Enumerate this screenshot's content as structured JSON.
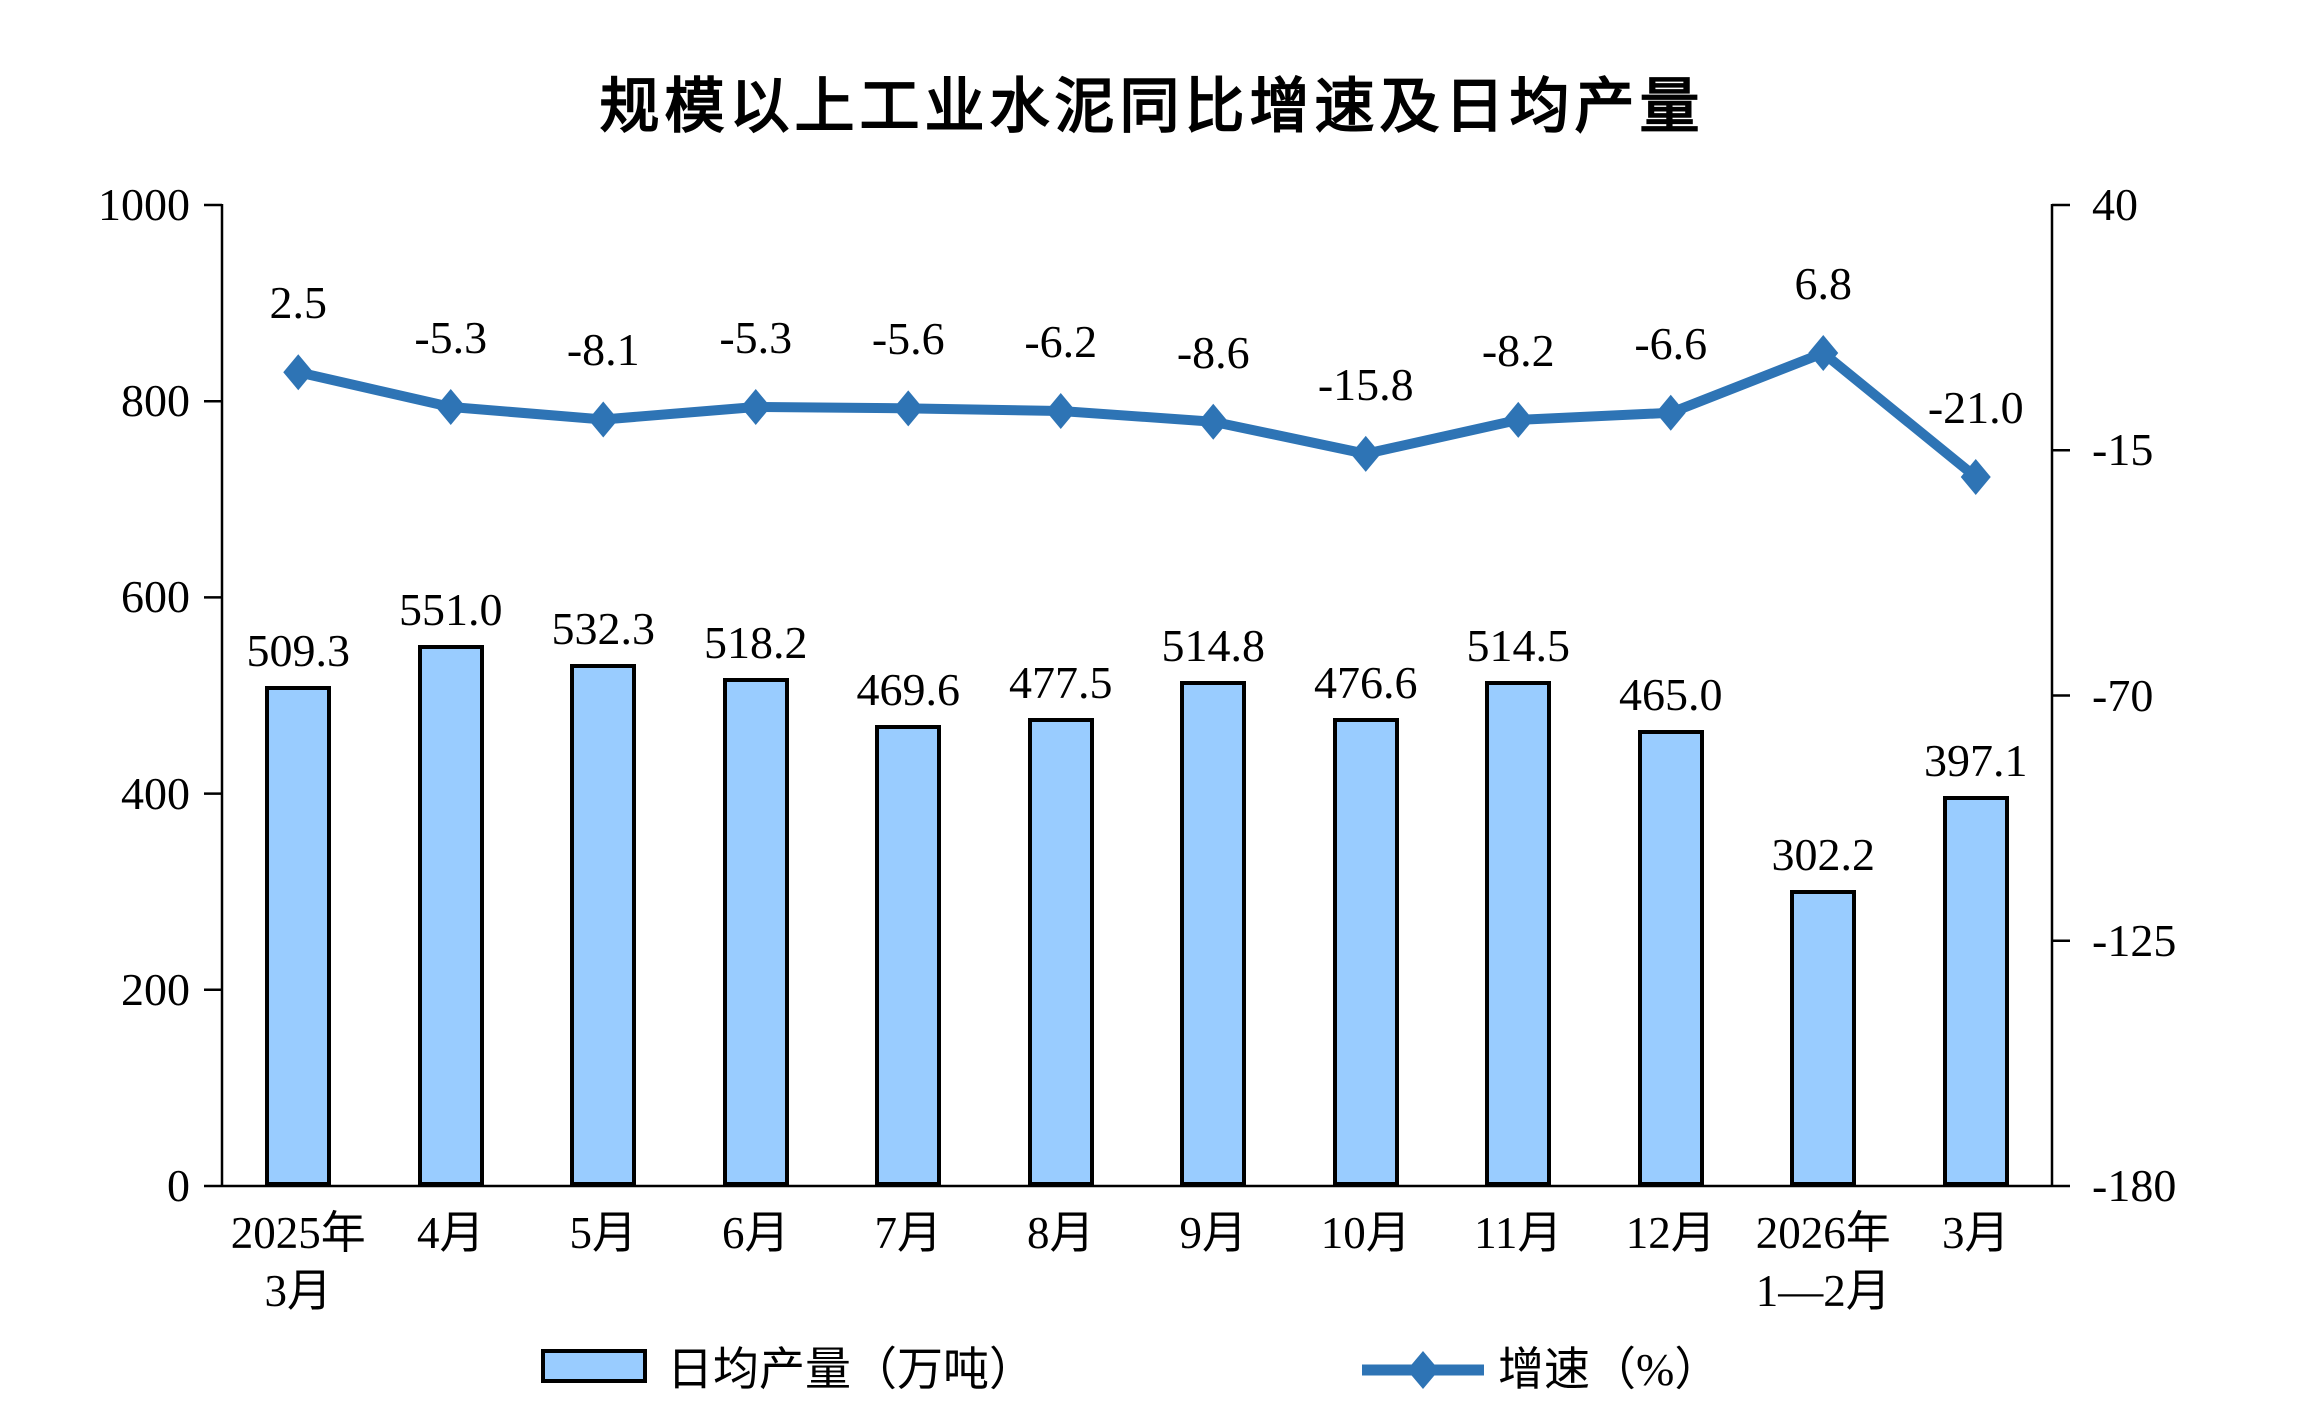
{
  "title": "规模以上工业水泥同比增速及日均产量",
  "colors": {
    "background": "#FFFFFF",
    "bar_fill": "#99CCFF",
    "bar_border": "#000000",
    "line": "#2E74B5",
    "axis": "#000000",
    "text": "#000000"
  },
  "chart_data": {
    "type": "combo-bar-line",
    "title": "规模以上工业水泥同比增速及日均产量",
    "categories": [
      "2025年\n3月",
      "4月",
      "5月",
      "6月",
      "7月",
      "8月",
      "9月",
      "10月",
      "11月",
      "12月",
      "2026年\n1—2月",
      "3月"
    ],
    "series": [
      {
        "name": "日均产量（万吨）",
        "type": "bar",
        "axis": "left",
        "values": [
          509.3,
          551.0,
          532.3,
          518.2,
          469.6,
          477.5,
          514.8,
          476.6,
          514.5,
          465.0,
          302.2,
          397.1
        ]
      },
      {
        "name": "增速（%）",
        "type": "line",
        "axis": "right",
        "values": [
          2.5,
          -5.3,
          -8.1,
          -5.3,
          -5.6,
          -6.2,
          -8.6,
          -15.8,
          -8.2,
          -6.6,
          6.8,
          -21.0
        ]
      }
    ],
    "left_axis": {
      "min": 0,
      "max": 1000,
      "ticks": [
        1000,
        800,
        600,
        400,
        200,
        0
      ]
    },
    "right_axis": {
      "min": -180,
      "max": 40,
      "ticks": [
        40,
        -15,
        -70,
        -125,
        -180
      ]
    },
    "legend": [
      {
        "label": "日均产量（万吨）",
        "swatch": "bar"
      },
      {
        "label": "增速（%）",
        "swatch": "line"
      }
    ],
    "grid": false,
    "legend_position": "bottom",
    "value_labels": true
  }
}
